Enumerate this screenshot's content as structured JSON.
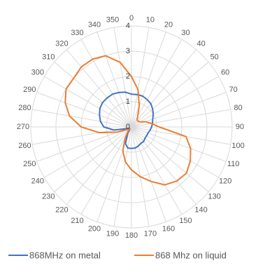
{
  "chart_data": {
    "type": "radar",
    "title": "",
    "angle_unit": "degrees",
    "angles": [
      0,
      10,
      20,
      30,
      40,
      50,
      60,
      70,
      80,
      90,
      100,
      110,
      120,
      130,
      140,
      150,
      160,
      170,
      180,
      190,
      200,
      210,
      220,
      230,
      240,
      250,
      260,
      270,
      280,
      290,
      300,
      310,
      320,
      330,
      340,
      350
    ],
    "angle_labels": [
      "0",
      "10",
      "20",
      "30",
      "40",
      "50",
      "60",
      "70",
      "80",
      "90",
      "100",
      "110",
      "120",
      "130",
      "140",
      "150",
      "160",
      "170",
      "180",
      "190",
      "200",
      "210",
      "220",
      "230",
      "240",
      "250",
      "260",
      "270",
      "280",
      "290",
      "300",
      "310",
      "320",
      "330",
      "340",
      "350"
    ],
    "radial_range": [
      0,
      4
    ],
    "radial_ticks": [
      0,
      1,
      2,
      3,
      4
    ],
    "radial_tick_labels": [
      "0",
      "1",
      "2",
      "3",
      "4"
    ],
    "grid": true,
    "legend_position": "bottom",
    "series": [
      {
        "name": "868MHz on metal",
        "color": "#4472C4",
        "values": [
          1.3,
          1.3,
          1.3,
          1.25,
          1.2,
          1.1,
          1.0,
          0.9,
          0.85,
          0.8,
          0.75,
          0.7,
          0.7,
          0.7,
          0.75,
          0.75,
          0.8,
          0.85,
          0.85,
          0.85,
          0.7,
          0.3,
          0.1,
          0.1,
          0.1,
          0.2,
          0.7,
          1.1,
          1.25,
          1.35,
          1.45,
          1.5,
          1.5,
          1.5,
          1.45,
          1.4
        ]
      },
      {
        "name": "868 Mhz on liquid",
        "color": "#ED7D31",
        "values": [
          2.0,
          1.5,
          0.9,
          0.5,
          0.35,
          0.35,
          0.4,
          0.6,
          0.8,
          1.1,
          2.2,
          2.5,
          2.7,
          2.85,
          2.8,
          2.65,
          2.3,
          2.0,
          1.7,
          1.4,
          1.0,
          0.5,
          0.2,
          0.1,
          0.2,
          0.6,
          1.3,
          2.0,
          2.5,
          2.8,
          3.0,
          3.0,
          3.1,
          3.1,
          3.0,
          2.6
        ]
      }
    ]
  }
}
